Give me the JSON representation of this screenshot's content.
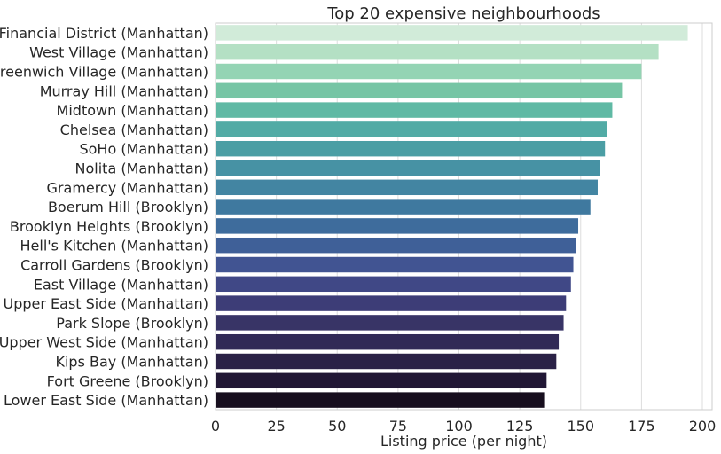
{
  "chart_data": {
    "type": "bar",
    "orientation": "horizontal",
    "title": "Top 20 expensive neighbourhoods",
    "xlabel": "Listing price (per night)",
    "ylabel": "",
    "xlim": [
      0,
      204
    ],
    "xticks": [
      0,
      25,
      50,
      75,
      100,
      125,
      150,
      175,
      200
    ],
    "grid": "vertical",
    "categories": [
      "Financial District (Manhattan)",
      "West Village (Manhattan)",
      "Greenwich Village (Manhattan)",
      "Murray Hill (Manhattan)",
      "Midtown (Manhattan)",
      "Chelsea (Manhattan)",
      "SoHo (Manhattan)",
      "Nolita (Manhattan)",
      "Gramercy (Manhattan)",
      "Boerum Hill (Brooklyn)",
      "Brooklyn Heights (Brooklyn)",
      "Hell's Kitchen (Manhattan)",
      "Carroll Gardens (Brooklyn)",
      "East Village (Manhattan)",
      "Upper East Side (Manhattan)",
      "Park Slope (Brooklyn)",
      "Upper West Side (Manhattan)",
      "Kips Bay (Manhattan)",
      "Fort Greene (Brooklyn)",
      "Lower East Side (Manhattan)"
    ],
    "values": [
      194,
      182,
      175,
      167,
      163,
      161,
      160,
      158,
      157,
      154,
      149,
      148,
      147,
      146,
      144,
      143,
      141,
      140,
      136,
      135
    ],
    "colors": [
      "#d1ebd9",
      "#b4e0c4",
      "#94d4b4",
      "#76c5a5",
      "#5fb9a4",
      "#52aba5",
      "#4b9ea4",
      "#4792a4",
      "#4385a2",
      "#3f799f",
      "#3e6c9c",
      "#3f6098",
      "#415492",
      "#404886",
      "#3d3d77",
      "#383466",
      "#312a56",
      "#2a2146",
      "#211735",
      "#170e1e"
    ]
  }
}
